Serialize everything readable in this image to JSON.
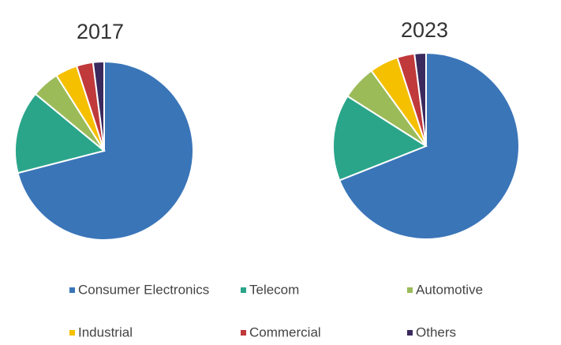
{
  "chart_data": [
    {
      "type": "pie",
      "title": "2017",
      "categories": [
        "Consumer Electronics",
        "Telecom",
        "Automotive",
        "Industrial",
        "Commercial",
        "Others"
      ],
      "colors": [
        "#3a75b8",
        "#2aa58a",
        "#9bbb59",
        "#f5c000",
        "#c0393b",
        "#3b2a5e"
      ],
      "values": [
        71,
        15,
        5,
        4,
        3,
        2
      ]
    },
    {
      "type": "pie",
      "title": "2023",
      "values": [
        69,
        15,
        6,
        5,
        3,
        2
      ]
    }
  ]
}
